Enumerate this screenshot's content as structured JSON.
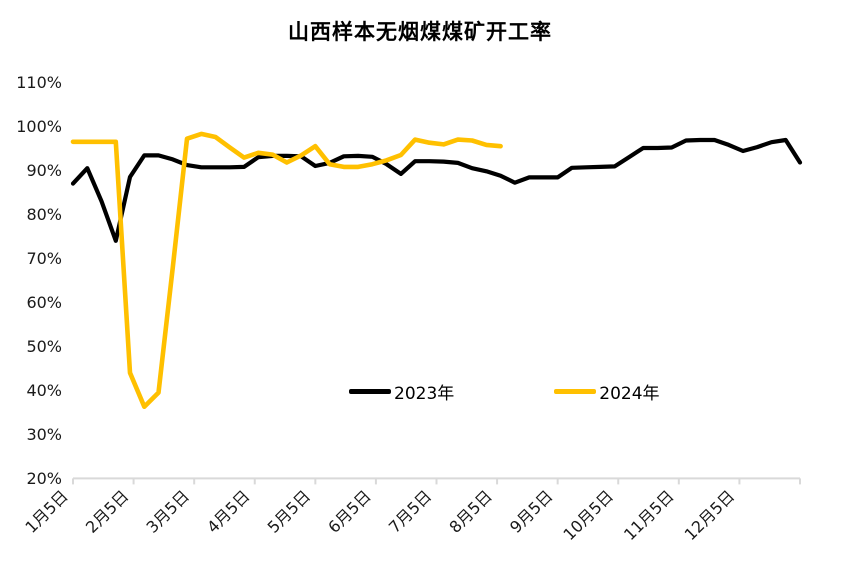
{
  "chart_data": {
    "type": "line",
    "title": "山西样本无烟煤煤矿开工率",
    "y_unit": "%",
    "ylim": [
      20,
      110
    ],
    "y_tick_step": 10,
    "y_tick_labels": [
      "110%",
      "100%",
      "90%",
      "80%",
      "70%",
      "60%",
      "50%",
      "40%",
      "30%",
      "20%"
    ],
    "x_tick_labels": [
      "1月5日",
      "2月5日",
      "3月5日",
      "4月5日",
      "5月5日",
      "6月5日",
      "7月5日",
      "8月5日",
      "9月5日",
      "10月5日",
      "11月5日",
      "12月5日"
    ],
    "grid": false,
    "legend_position": "inside-lower-center",
    "series": [
      {
        "name": "2023年",
        "color": "#000000",
        "values": [
          87.0,
          90.5,
          83.0,
          74.0,
          88.5,
          93.4,
          93.4,
          92.5,
          91.2,
          90.7,
          90.7,
          90.7,
          90.8,
          93.0,
          93.3,
          93.3,
          93.2,
          91.0,
          91.7,
          93.2,
          93.3,
          93.1,
          91.4,
          89.2,
          92.1,
          92.1,
          92.0,
          91.7,
          90.5,
          89.8,
          88.8,
          87.2,
          88.4,
          88.4,
          88.4,
          90.6,
          90.7,
          90.8,
          90.9,
          93.0,
          95.1,
          95.1,
          95.2,
          96.8,
          96.9,
          96.9,
          95.8,
          94.4,
          95.3,
          96.4,
          96.9,
          91.8
        ]
      },
      {
        "name": "2024年",
        "color": "#FFC000",
        "values": [
          96.5,
          96.5,
          96.5,
          96.5,
          44.0,
          36.3,
          39.5,
          68.0,
          97.2,
          98.3,
          97.6,
          95.2,
          92.9,
          94.0,
          93.6,
          91.8,
          93.4,
          95.5,
          91.4,
          90.8,
          90.8,
          91.4,
          92.3,
          93.5,
          97.0,
          96.3,
          95.9,
          97.0,
          96.8,
          95.8,
          95.5
        ]
      }
    ]
  },
  "colors": {
    "axis": "#D9D9D9",
    "tick_text": "#1a1a1a"
  }
}
